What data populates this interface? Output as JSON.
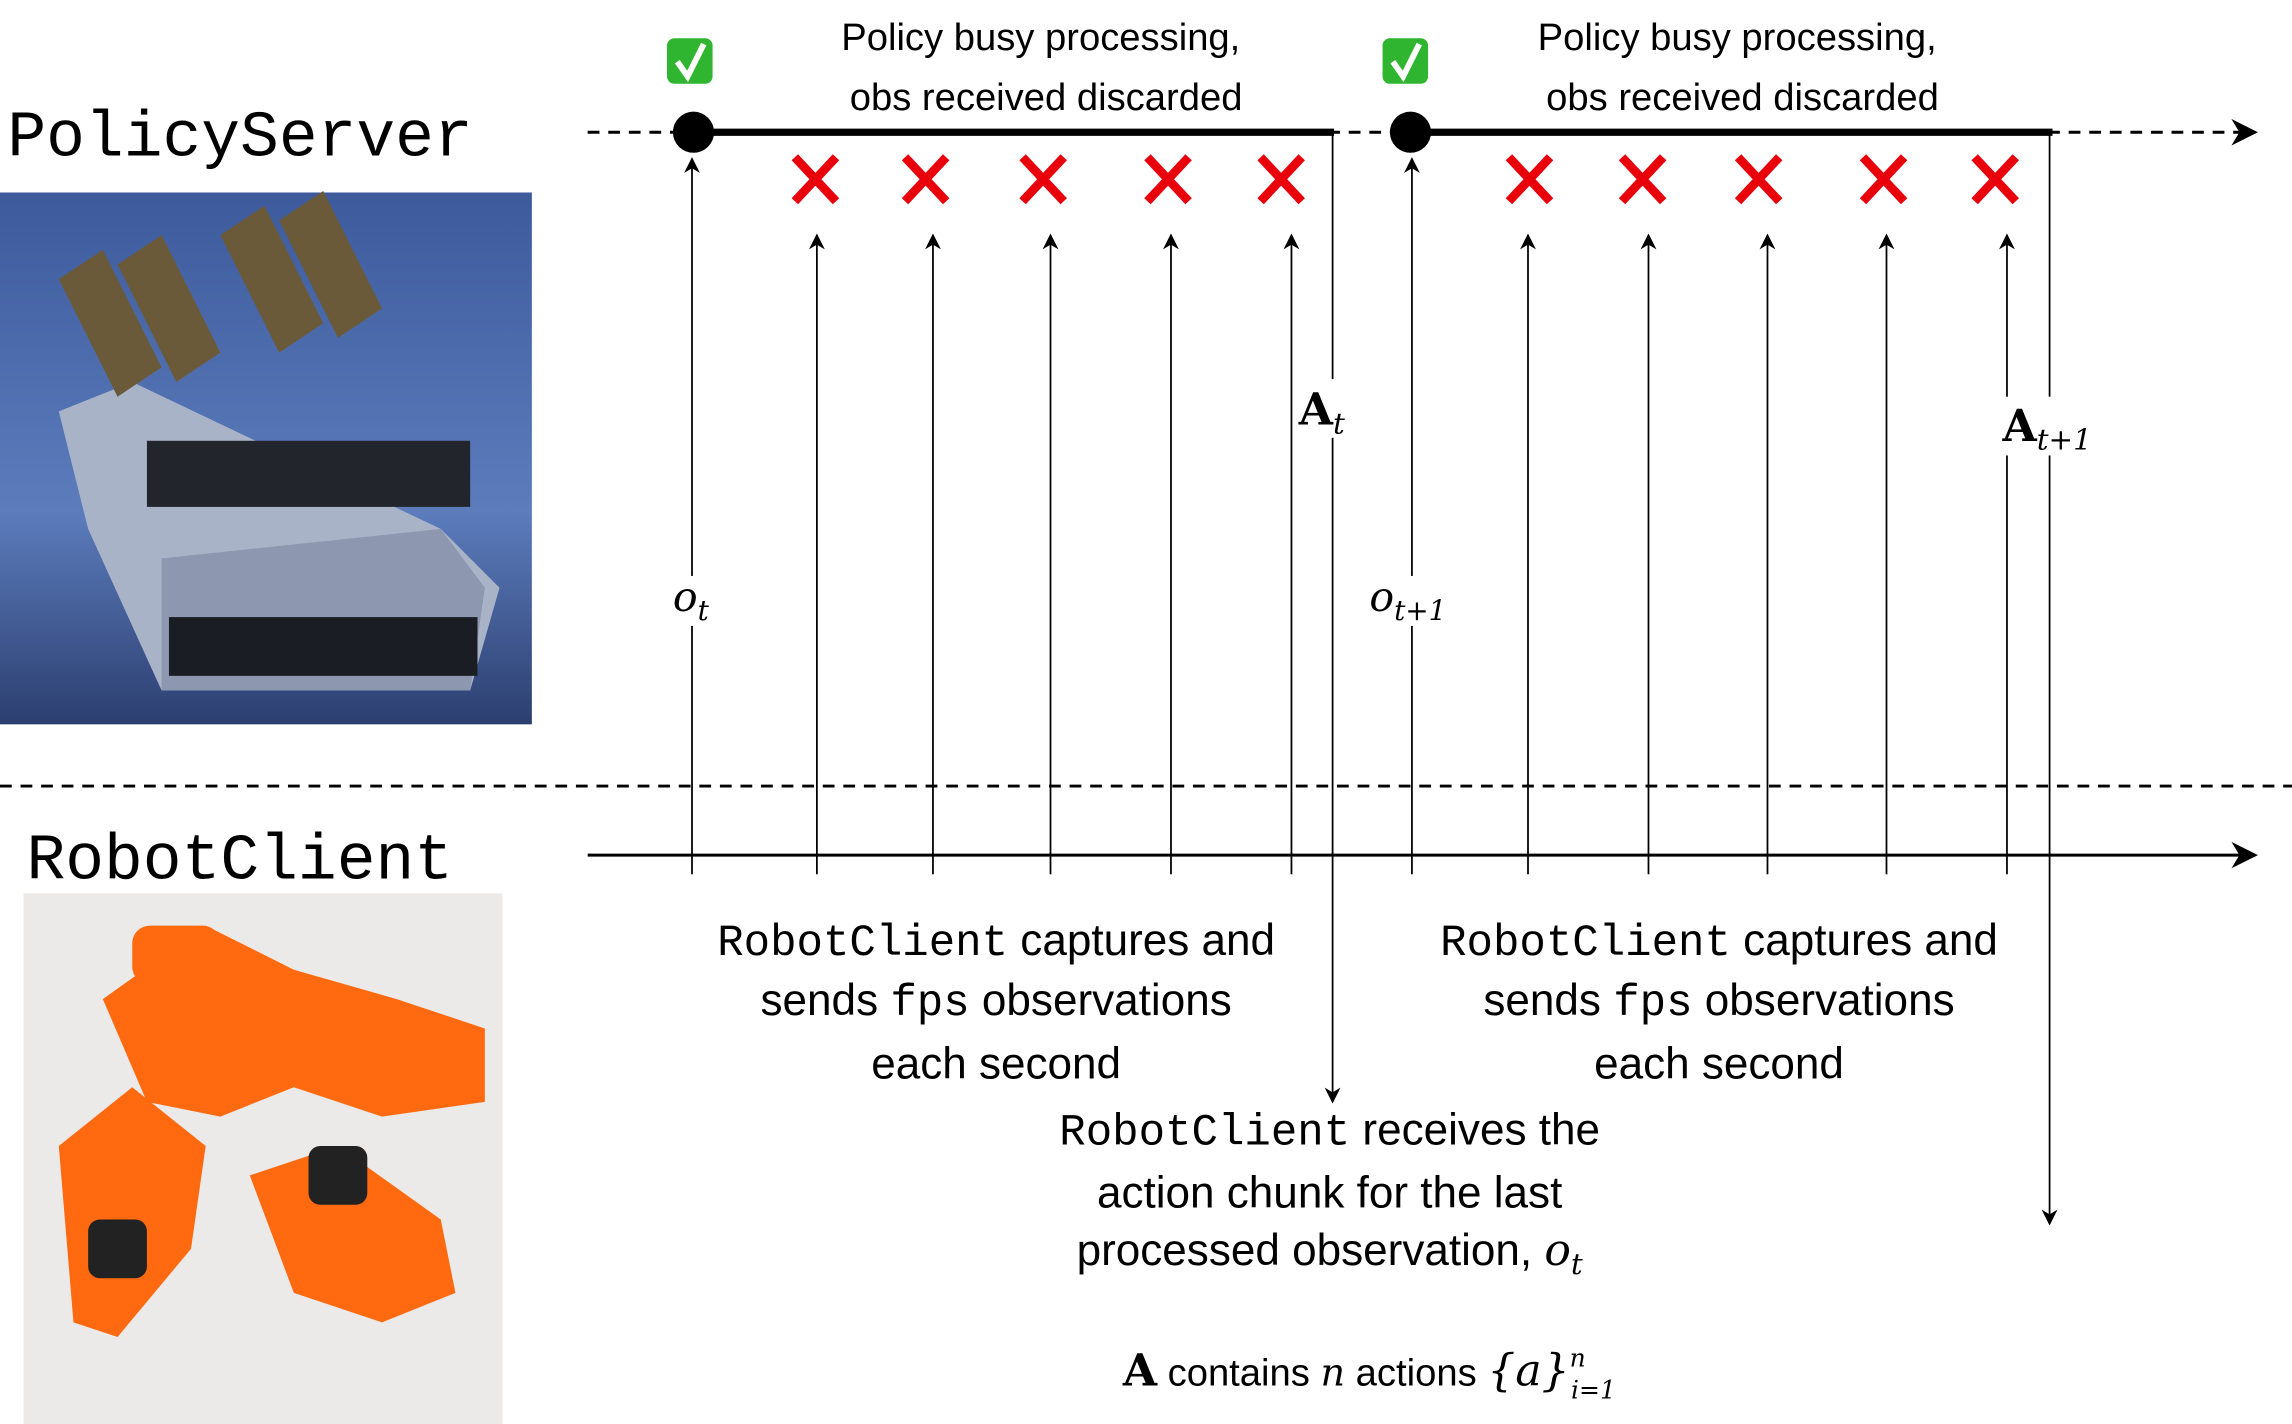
{
  "server": {
    "label": "PolicyServer",
    "busy_line1": "Policy busy processing,",
    "busy_line2": "obs received discarded",
    "check_icon": "green-check-icon",
    "discard_icon": "red-x-icon"
  },
  "client": {
    "label": "RobotClient"
  },
  "labels": {
    "o": "o",
    "t": "t",
    "t1": "t+1",
    "A": "A"
  },
  "capture_text": {
    "mono1": "RobotClient",
    "rest1": " captures and",
    "pre2": "sends ",
    "mono2": "fps",
    "rest2": "  observations",
    "line3": "each second"
  },
  "receive_text": {
    "mono": "RobotClient",
    "rest1": " receives the",
    "line2": "action chunk for the last",
    "line3": "processed observation, "
  },
  "footnote": {
    "A": "A",
    "contains": " contains ",
    "n": "n",
    "actions": " actions ",
    "set": "{a}",
    "sup": "n",
    "sub": "i=1"
  },
  "colors": {
    "discard": "#e8000b",
    "check": "#2fb52f",
    "server_bg": "#4a6aa8",
    "robot": "#ff6a10"
  }
}
